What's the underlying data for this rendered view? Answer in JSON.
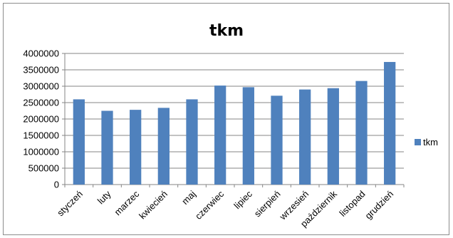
{
  "chart_data": {
    "type": "bar",
    "title": "tkm",
    "categories": [
      "styczeń",
      "luty",
      "marzec",
      "kwiecień",
      "maj",
      "czerwiec",
      "lipiec",
      "sierpień",
      "wrzesień",
      "październik",
      "listopad",
      "grudzień"
    ],
    "series": [
      {
        "name": "tkm",
        "color": "#4f81bd",
        "values": [
          2600000,
          2250000,
          2280000,
          2340000,
          2600000,
          3020000,
          2970000,
          2710000,
          2900000,
          2940000,
          3160000,
          3740000
        ]
      }
    ],
    "ylim": [
      0,
      4000000
    ],
    "yticks": [
      "0",
      "500000",
      "1000000",
      "1500000",
      "2000000",
      "2500000",
      "3000000",
      "3500000",
      "4000000"
    ],
    "grid": true,
    "legend_position": "right"
  }
}
